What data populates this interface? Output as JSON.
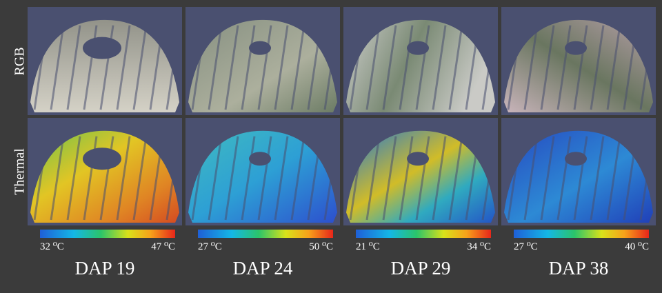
{
  "row_labels": [
    "RGB",
    "Thermal"
  ],
  "columns": [
    {
      "title": "DAP 19",
      "scale_min": "32 ⁰C",
      "scale_max": "47 ⁰C"
    },
    {
      "title": "DAP 24",
      "scale_min": "27 ⁰C",
      "scale_max": "50 ⁰C"
    },
    {
      "title": "DAP 29",
      "scale_min": "21 ⁰C",
      "scale_max": "34 ⁰C"
    },
    {
      "title": "DAP 38",
      "scale_min": "27 ⁰C",
      "scale_max": "40 ⁰C"
    }
  ]
}
